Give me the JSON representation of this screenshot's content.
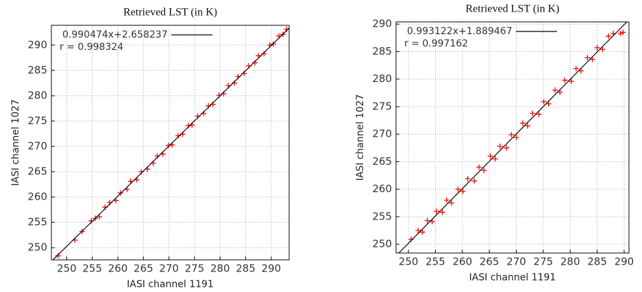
{
  "chart_data": [
    {
      "type": "scatter",
      "title": "Retrieved LST  (in K)",
      "xlabel": "IASI channel 1191",
      "ylabel": "IASI channel 1027",
      "xlim": [
        247,
        293.5
      ],
      "ylim": [
        247.6,
        293.9
      ],
      "xticks": [
        250,
        255,
        260,
        265,
        270,
        275,
        280,
        285,
        290
      ],
      "yticks": [
        250,
        255,
        260,
        265,
        270,
        275,
        280,
        285,
        290
      ],
      "grid": true,
      "legend": "upper left",
      "series": [
        {
          "color": "#ff0000",
          "x": [
            248.3,
            251.6,
            253.0,
            254.8,
            255.6,
            256.4,
            257.5,
            258.4,
            259.6,
            260.5,
            261.8,
            262.5,
            263.7,
            264.6,
            265.8,
            266.9,
            267.7,
            268.8,
            269.9,
            270.6,
            271.8,
            272.7,
            273.8,
            274.5,
            275.6,
            276.8,
            277.7,
            278.6,
            279.8,
            280.7,
            281.6,
            282.8,
            283.5,
            284.7,
            285.6,
            286.8,
            287.5,
            288.6,
            289.7,
            290.4,
            291.5,
            292.3,
            293.0
          ],
          "values": [
            248.4,
            251.5,
            253.2,
            255.3,
            255.8,
            256.1,
            258.0,
            258.9,
            259.3,
            260.8,
            261.5,
            263.1,
            263.4,
            265.0,
            265.5,
            266.7,
            268.1,
            268.5,
            270.2,
            270.3,
            272.1,
            272.4,
            274.1,
            274.2,
            276.0,
            276.5,
            278.0,
            278.3,
            280.1,
            280.4,
            282.0,
            282.5,
            283.8,
            284.4,
            285.9,
            286.5,
            287.9,
            288.3,
            290.0,
            290.2,
            291.8,
            292.1,
            293.1
          ]
        }
      ],
      "fit": {
        "name": "0.990474x+2.658237",
        "slope": 0.990474,
        "intercept": 2.658237,
        "color": "#000000"
      },
      "annotation": "r = 0.998324"
    },
    {
      "type": "scatter",
      "title": "Retrieved LST  (in K)",
      "xlabel": "IASI channel 1191",
      "ylabel": "IASI channel 1027",
      "xlim": [
        247.7,
        290.9
      ],
      "ylim": [
        248.4,
        290.4
      ],
      "xticks": [
        250,
        255,
        260,
        265,
        270,
        275,
        280,
        285,
        290
      ],
      "yticks": [
        250,
        255,
        260,
        265,
        270,
        275,
        280,
        285,
        290
      ],
      "grid": true,
      "legend": "upper left",
      "series": [
        {
          "color": "#ff0000",
          "x": [
            248.0,
            250.5,
            251.8,
            252.6,
            253.5,
            254.4,
            255.2,
            256.3,
            257.1,
            258.0,
            259.2,
            260.1,
            261.0,
            262.2,
            263.1,
            264.0,
            265.2,
            266.1,
            267.0,
            268.2,
            269.1,
            270.0,
            271.2,
            272.1,
            273.0,
            274.2,
            275.1,
            276.0,
            277.2,
            278.1,
            279.0,
            280.2,
            281.1,
            282.0,
            283.2,
            284.1,
            285.0,
            286.0,
            287.1,
            288.0,
            289.3,
            289.8
          ],
          "values": [
            247.8,
            250.9,
            252.5,
            252.2,
            254.3,
            254.1,
            256.0,
            255.8,
            258.0,
            257.5,
            260.0,
            259.6,
            261.9,
            261.5,
            264.0,
            263.4,
            266.0,
            265.5,
            267.8,
            267.5,
            269.9,
            269.4,
            272.0,
            271.5,
            273.8,
            273.6,
            275.9,
            275.5,
            278.0,
            277.6,
            279.8,
            279.6,
            281.9,
            281.5,
            283.9,
            283.6,
            285.7,
            285.4,
            287.8,
            288.3,
            288.3,
            288.5
          ]
        }
      ],
      "fit": {
        "name": "0.993122x+1.889467",
        "slope": 0.993122,
        "intercept": 1.889467,
        "color": "#000000"
      },
      "annotation": "r = 0.997162"
    }
  ]
}
